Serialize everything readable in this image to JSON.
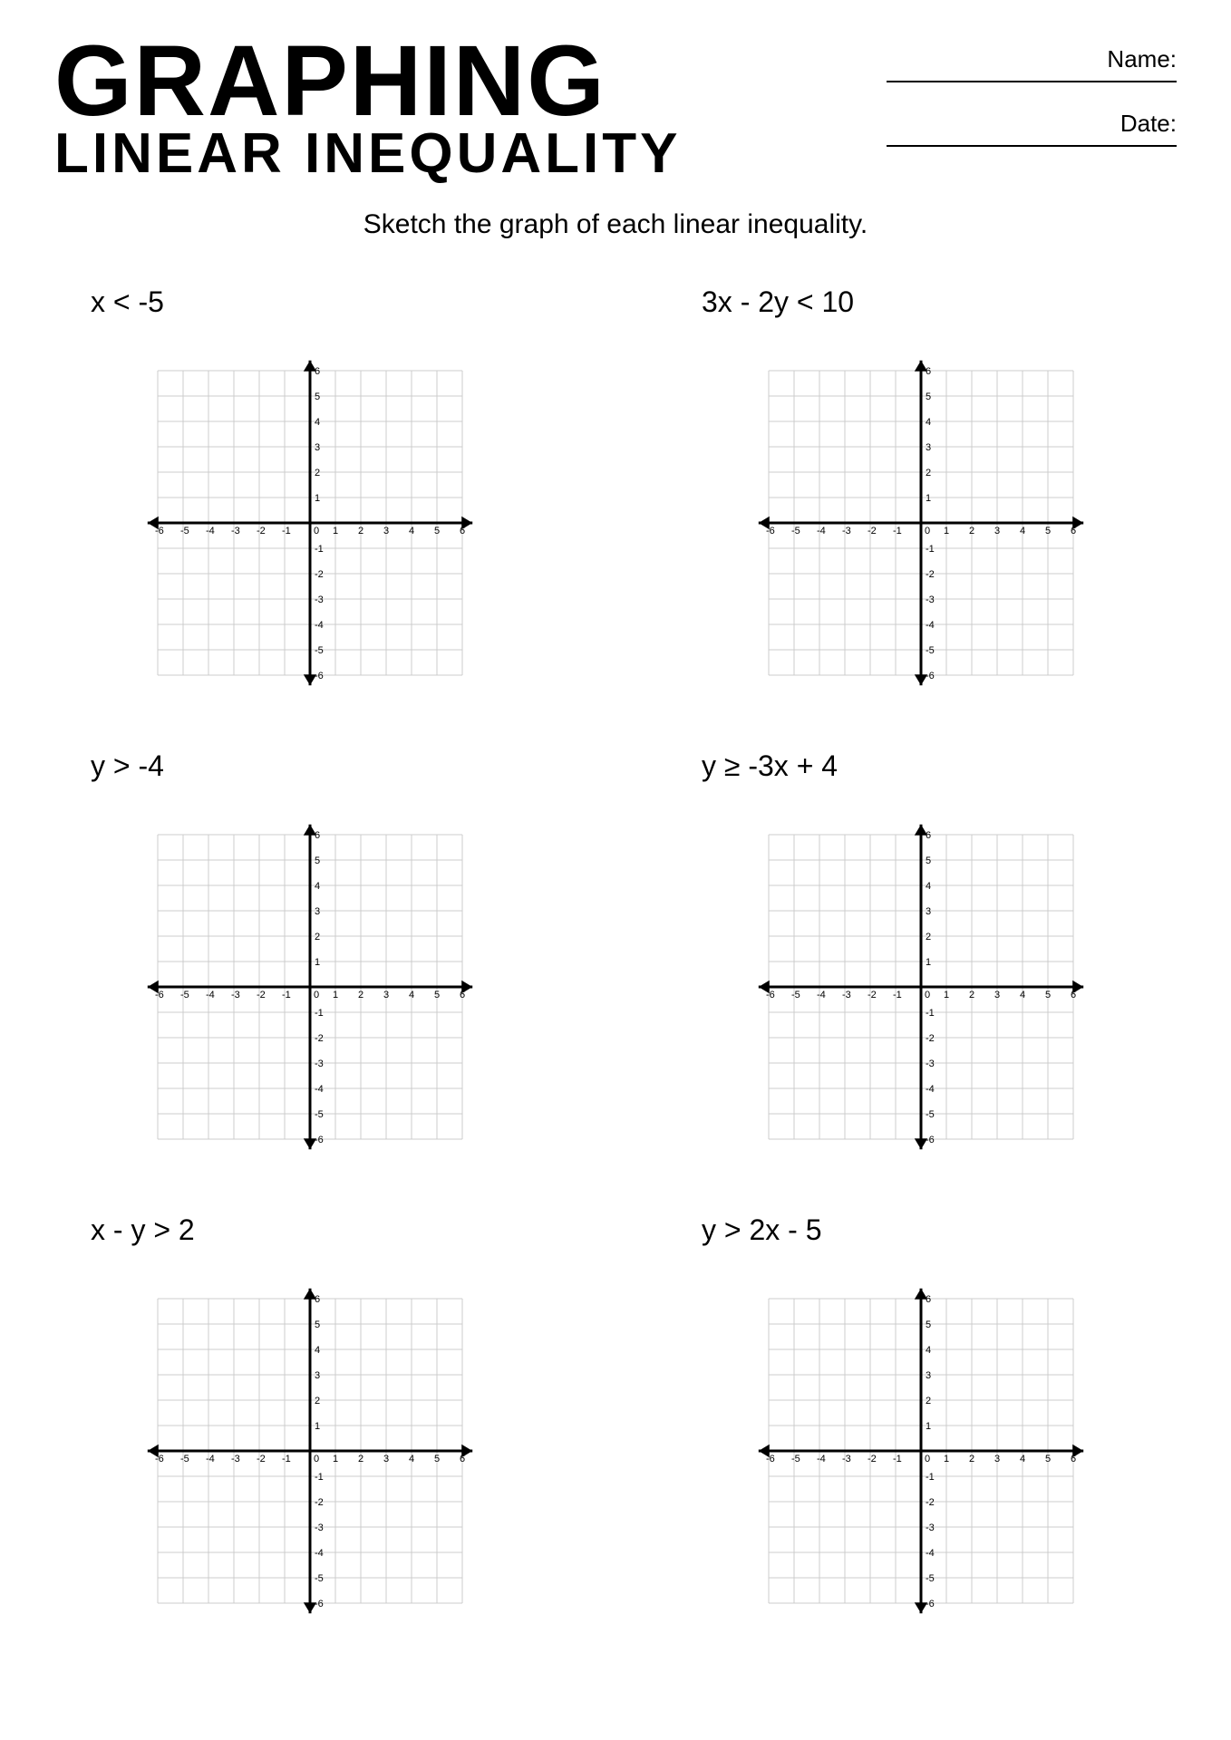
{
  "header": {
    "title_line1": "GRAPHING",
    "title_line2": "LINEAR INEQUALITY",
    "name_label": "Name:",
    "date_label": "Date:"
  },
  "instruction": "Sketch the graph of each linear inequality.",
  "graph_style": {
    "xlim": [
      -7,
      7
    ],
    "ylim": [
      -7,
      7
    ],
    "xtick_min": -6,
    "xtick_max": 6,
    "xtick_step": 1,
    "ytick_min": -6,
    "ytick_max": 6,
    "ytick_step": 1,
    "grid_color": "#cccccc",
    "axis_color": "#000000",
    "background_color": "#ffffff",
    "axis_width": 3,
    "grid_width": 1,
    "tick_fontsize": 11,
    "svg_size": 420,
    "cell": 28
  },
  "problems": [
    {
      "label": "x < -5"
    },
    {
      "label": "3x - 2y < 10"
    },
    {
      "label": "y > -4"
    },
    {
      "label": "y ≥ -3x + 4"
    },
    {
      "label": "x - y > 2"
    },
    {
      "label": "y > 2x - 5"
    }
  ]
}
